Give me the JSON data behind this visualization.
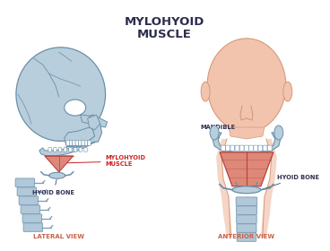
{
  "title": "MYLOHYOID\nMUSCLE",
  "title_color": "#2d2d4e",
  "title_fontsize": 9.5,
  "bg_color": "#ffffff",
  "lateral_label": "LATERAL VIEW",
  "anterior_label": "ANTERIOR VIEW",
  "view_label_color": "#c8614a",
  "view_label_fontsize": 5.0,
  "label_mandible": "MANDIBLE",
  "label_mylohyoid": "MYLOHYOID\nMUSCLE",
  "label_hyoid_left": "HYOID BONE",
  "label_hyoid_right": "HYOID BONE",
  "label_color_dark": "#2d2d4e",
  "label_color_red": "#cc2222",
  "label_fontsize": 4.8,
  "muscle_color": "#b84040",
  "muscle_light": "#dd8878",
  "bone_color": "#b8cedd",
  "bone_dark": "#8aaabb",
  "bone_edge": "#6a8fa8",
  "skin_color": "#f2c4ae",
  "skin_edge": "#d89878",
  "spine_color": "#b0c8d8",
  "spine_edge": "#7a9bb5"
}
